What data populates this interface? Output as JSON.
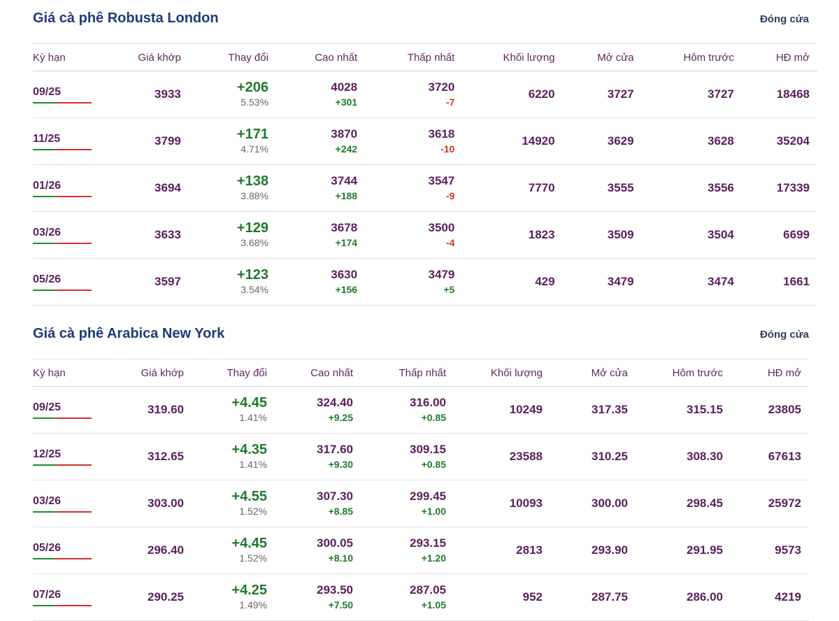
{
  "robusta": {
    "title": "Giá cà phê Robusta London",
    "status": "Đóng cửa",
    "headers": [
      "Kỳ hạn",
      "Giá khớp",
      "Thay đổi",
      "Cao nhất",
      "Thấp nhất",
      "Khối lượng",
      "Mở cửa",
      "Hôm trước",
      "HĐ mở"
    ],
    "rows": [
      {
        "term": "09/25",
        "price": "3933",
        "change": "+206",
        "pct": "5.53%",
        "high": "4028",
        "high_chg": "+301",
        "low": "3720",
        "low_chg": "-7",
        "volume": "6220",
        "open": "3727",
        "prev": "3727",
        "oi": "18468"
      },
      {
        "term": "11/25",
        "price": "3799",
        "change": "+171",
        "pct": "4.71%",
        "high": "3870",
        "high_chg": "+242",
        "low": "3618",
        "low_chg": "-10",
        "volume": "14920",
        "open": "3629",
        "prev": "3628",
        "oi": "35204"
      },
      {
        "term": "01/26",
        "price": "3694",
        "change": "+138",
        "pct": "3.88%",
        "high": "3744",
        "high_chg": "+188",
        "low": "3547",
        "low_chg": "-9",
        "volume": "7770",
        "open": "3555",
        "prev": "3556",
        "oi": "17339"
      },
      {
        "term": "03/26",
        "price": "3633",
        "change": "+129",
        "pct": "3.68%",
        "high": "3678",
        "high_chg": "+174",
        "low": "3500",
        "low_chg": "-4",
        "volume": "1823",
        "open": "3509",
        "prev": "3504",
        "oi": "6699"
      },
      {
        "term": "05/26",
        "price": "3597",
        "change": "+123",
        "pct": "3.54%",
        "high": "3630",
        "high_chg": "+156",
        "low": "3479",
        "low_chg": "+5",
        "volume": "429",
        "open": "3479",
        "prev": "3474",
        "oi": "1661"
      }
    ]
  },
  "arabica": {
    "title": "Giá cà phê Arabica New York",
    "status": "Đóng cửa",
    "headers": [
      "Kỳ hạn",
      "Giá khớp",
      "Thay đổi",
      "Cao nhất",
      "Thấp nhất",
      "Khối lượng",
      "Mở cửa",
      "Hôm trước",
      "HĐ mở"
    ],
    "rows": [
      {
        "term": "09/25",
        "price": "319.60",
        "change": "+4.45",
        "pct": "1.41%",
        "high": "324.40",
        "high_chg": "+9.25",
        "low": "316.00",
        "low_chg": "+0.85",
        "volume": "10249",
        "open": "317.35",
        "prev": "315.15",
        "oi": "23805"
      },
      {
        "term": "12/25",
        "price": "312.65",
        "change": "+4.35",
        "pct": "1.41%",
        "high": "317.60",
        "high_chg": "+9.30",
        "low": "309.15",
        "low_chg": "+0.85",
        "volume": "23588",
        "open": "310.25",
        "prev": "308.30",
        "oi": "67613"
      },
      {
        "term": "03/26",
        "price": "303.00",
        "change": "+4.55",
        "pct": "1.52%",
        "high": "307.30",
        "high_chg": "+8.85",
        "low": "299.45",
        "low_chg": "+1.00",
        "volume": "10093",
        "open": "300.00",
        "prev": "298.45",
        "oi": "25972"
      },
      {
        "term": "05/26",
        "price": "296.40",
        "change": "+4.45",
        "pct": "1.52%",
        "high": "300.05",
        "high_chg": "+8.10",
        "low": "293.15",
        "low_chg": "+1.20",
        "volume": "2813",
        "open": "293.90",
        "prev": "291.95",
        "oi": "9573"
      },
      {
        "term": "07/26",
        "price": "290.25",
        "change": "+4.25",
        "pct": "1.49%",
        "high": "293.50",
        "high_chg": "+7.50",
        "low": "287.05",
        "low_chg": "+1.05",
        "volume": "952",
        "open": "287.75",
        "prev": "286.00",
        "oi": "4219"
      }
    ]
  },
  "colors": {
    "title": "#1d3b7a",
    "text": "#5a1f5c",
    "positive": "#1f7a2c",
    "negative": "#d1361f"
  }
}
